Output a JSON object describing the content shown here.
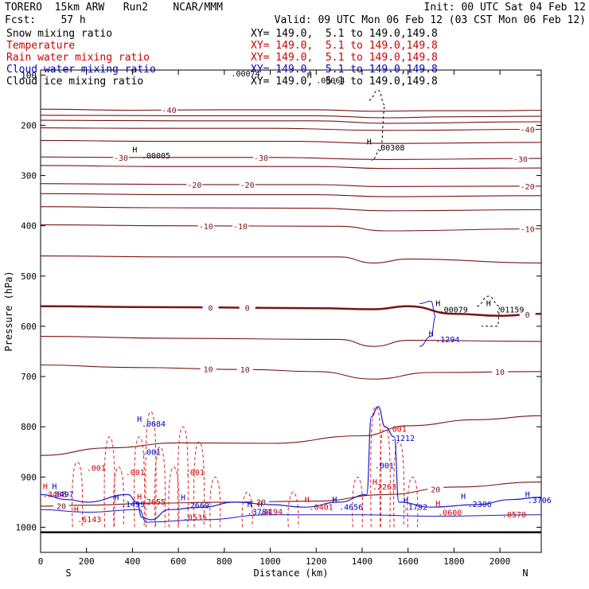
{
  "header": {
    "model": "TORERO  15km ARW   Run2    NCAR/MMM",
    "init": "Init: 00 UTC Sat 04 Feb 12",
    "fcst": "Fcst:    57 h",
    "valid": "Valid: 09 UTC Mon 06 Feb 12 (03 CST Mon 06 Feb 12)",
    "fields": [
      {
        "name": "Snow mixing ratio",
        "xy": "XY= 149.0,  5.1 to 149.0,149.8",
        "color": "#000000"
      },
      {
        "name": "Temperature",
        "xy": "XY= 149.0,  5.1 to 149.0,149.8",
        "color": "#cc0000"
      },
      {
        "name": "Rain water mixing ratio",
        "xy": "XY= 149.0,  5.1 to 149.0,149.8",
        "color": "#cc0000"
      },
      {
        "name": "Cloud water mixing ratio",
        "xy": "XY= 149.0,  5.1 to 149.0,149.8",
        "color": "#0000cc"
      },
      {
        "name": "Cloud ice mixing ratio",
        "xy": "XY= 149.0,  5.1 to 149.0,149.8",
        "color": "#000000"
      }
    ]
  },
  "colors": {
    "temperature": "#7a1414",
    "freezing": "#7a1414",
    "rain": "#dd2222",
    "cloud": "#1a1ad0",
    "ice": "#000000"
  },
  "chart_data": {
    "type": "line",
    "xlabel": "Distance (km)",
    "ylabel": "Pressure (hPa)",
    "xlim": [
      0,
      2180
    ],
    "ylim": [
      1050,
      90
    ],
    "xticks": [
      "0",
      "200",
      "400",
      "600",
      "800",
      "1000",
      "1200",
      "1400",
      "1600",
      "1800",
      "2000"
    ],
    "yticks": [
      "100",
      "200",
      "300",
      "400",
      "500",
      "600",
      "700",
      "800",
      "900",
      "1000"
    ],
    "end_labels": {
      "left": "S",
      "right": "N"
    },
    "isotherms": [
      {
        "label": "-40",
        "values": [
          [
            0,
            168
          ],
          [
            400,
            170
          ],
          [
            800,
            169
          ],
          [
            1200,
            169
          ],
          [
            1450,
            172
          ],
          [
            1700,
            171
          ],
          [
            2000,
            171
          ],
          [
            2180,
            170
          ]
        ],
        "labels_at": [
          [
            560,
            178
          ]
        ]
      },
      {
        "label": "-40",
        "values": [
          [
            0,
            180
          ],
          [
            600,
            181
          ],
          [
            1200,
            181
          ],
          [
            1500,
            185
          ],
          [
            1800,
            183
          ],
          [
            2180,
            182
          ]
        ]
      },
      {
        "label": "-40",
        "values": [
          [
            0,
            190
          ],
          [
            600,
            191
          ],
          [
            1200,
            191
          ],
          [
            1500,
            196
          ],
          [
            2180,
            193
          ]
        ]
      },
      {
        "label": "-40",
        "values": [
          [
            0,
            205
          ],
          [
            400,
            206
          ],
          [
            1000,
            206
          ],
          [
            1500,
            210
          ],
          [
            2180,
            208
          ]
        ],
        "labels_at": [
          [
            2120,
            206
          ]
        ]
      },
      {
        "label": "-40",
        "values": [
          [
            0,
            230
          ],
          [
            500,
            232
          ],
          [
            1100,
            232
          ],
          [
            1500,
            236
          ],
          [
            2180,
            234
          ]
        ]
      },
      {
        "label": "-30",
        "values": [
          [
            0,
            263
          ],
          [
            350,
            264
          ],
          [
            1000,
            264
          ],
          [
            1500,
            268
          ],
          [
            2180,
            266
          ]
        ],
        "labels_at": [
          [
            350,
            264
          ],
          [
            960,
            264
          ],
          [
            2090,
            266
          ]
        ]
      },
      {
        "label": "-30",
        "values": [
          [
            0,
            280
          ],
          [
            500,
            282
          ],
          [
            1200,
            282
          ],
          [
            1500,
            286
          ],
          [
            2180,
            285
          ]
        ]
      },
      {
        "label": "-20",
        "values": [
          [
            0,
            316
          ],
          [
            700,
            318
          ],
          [
            1200,
            318
          ],
          [
            1500,
            322
          ],
          [
            2180,
            321
          ]
        ],
        "labels_at": [
          [
            670,
            318
          ],
          [
            900,
            317
          ],
          [
            2120,
            321
          ]
        ]
      },
      {
        "label": "-20",
        "values": [
          [
            0,
            336
          ],
          [
            600,
            338
          ],
          [
            1200,
            338
          ],
          [
            1500,
            342
          ],
          [
            2180,
            340
          ]
        ]
      },
      {
        "label": "-10",
        "values": [
          [
            0,
            362
          ],
          [
            500,
            364
          ],
          [
            1200,
            365
          ],
          [
            1500,
            370
          ],
          [
            2180,
            368
          ]
        ]
      },
      {
        "label": "-10",
        "values": [
          [
            0,
            398
          ],
          [
            600,
            400
          ],
          [
            1300,
            401
          ],
          [
            1500,
            410
          ],
          [
            2180,
            406
          ]
        ],
        "labels_at": [
          [
            720,
            401
          ],
          [
            870,
            401
          ],
          [
            2120,
            406
          ]
        ]
      },
      {
        "label": "-10",
        "values": [
          [
            0,
            460
          ],
          [
            600,
            462
          ],
          [
            1300,
            462
          ],
          [
            1450,
            474
          ],
          [
            1600,
            466
          ],
          [
            2180,
            474
          ]
        ]
      },
      {
        "label": "0",
        "values": [
          [
            0,
            560
          ],
          [
            500,
            562
          ],
          [
            1200,
            564
          ],
          [
            1450,
            566
          ],
          [
            1600,
            560
          ],
          [
            1800,
            575
          ],
          [
            2000,
            579
          ],
          [
            2180,
            575
          ]
        ],
        "labels_at": [
          [
            740,
            565
          ],
          [
            900,
            566
          ],
          [
            2120,
            577
          ]
        ],
        "bold": true
      },
      {
        "label": "0",
        "values": [
          [
            0,
            620
          ],
          [
            600,
            624
          ],
          [
            1300,
            626
          ],
          [
            1450,
            640
          ],
          [
            1600,
            628
          ],
          [
            2180,
            630
          ]
        ]
      },
      {
        "label": "10",
        "values": [
          [
            0,
            677
          ],
          [
            400,
            682
          ],
          [
            900,
            686
          ],
          [
            1200,
            690
          ],
          [
            1450,
            705
          ],
          [
            1700,
            692
          ],
          [
            2180,
            690
          ]
        ],
        "labels_at": [
          [
            730,
            688
          ],
          [
            890,
            688
          ],
          [
            2000,
            688
          ]
        ]
      },
      {
        "label": "10",
        "values": [
          [
            0,
            857
          ],
          [
            300,
            842
          ],
          [
            600,
            832
          ],
          [
            1000,
            833
          ],
          [
            1400,
            818
          ],
          [
            1600,
            798
          ],
          [
            1900,
            786
          ],
          [
            2180,
            778
          ]
        ]
      },
      {
        "label": "20",
        "values": [
          [
            0,
            958
          ],
          [
            200,
            956
          ],
          [
            500,
            952
          ],
          [
            800,
            950
          ],
          [
            1200,
            948
          ],
          [
            1500,
            935
          ],
          [
            1800,
            920
          ],
          [
            2180,
            910
          ]
        ],
        "labels_at": [
          [
            90,
            956
          ],
          [
            960,
            950
          ],
          [
            1720,
            920
          ]
        ]
      }
    ],
    "labels": [
      {
        "text": "H",
        "x": 400,
        "y": 254,
        "color": "#000000"
      },
      {
        "text": ".00005",
        "x": 440,
        "y": 266,
        "color": "#000000"
      },
      {
        "text": ".00074",
        "x": 830,
        "y": 103,
        "color": "#000000"
      },
      {
        "text": "H",
        "x": 1160,
        "y": 106,
        "color": "#000000"
      },
      {
        "text": ".00064",
        "x": 1200,
        "y": 116,
        "color": "#000000"
      },
      {
        "text": "H",
        "x": 1420,
        "y": 238,
        "color": "#000000"
      },
      {
        "text": ".00308",
        "x": 1460,
        "y": 250,
        "color": "#000000"
      },
      {
        "text": "H",
        "x": 1720,
        "y": 560,
        "color": "#000000"
      },
      {
        "text": ".00079",
        "x": 1735,
        "y": 572,
        "color": "#000000"
      },
      {
        "text": "H",
        "x": 1940,
        "y": 560,
        "color": "#000000"
      },
      {
        "text": ".01159",
        "x": 1980,
        "y": 572,
        "color": "#000000"
      },
      {
        "text": "H",
        "x": 1690,
        "y": 620,
        "color": "#0000cc"
      },
      {
        "text": ".1294",
        "x": 1720,
        "y": 632,
        "color": "#0000cc"
      },
      {
        "text": "H",
        "x": 420,
        "y": 790,
        "color": "#0000cc"
      },
      {
        "text": ".0684",
        "x": 440,
        "y": 800,
        "color": "#0000cc"
      },
      {
        "text": ".001",
        "x": 440,
        "y": 856,
        "color": "#0000cc"
      },
      {
        "text": ".001",
        "x": 200,
        "y": 888,
        "color": "#cc0000"
      },
      {
        "text": ".001",
        "x": 370,
        "y": 896,
        "color": "#cc0000"
      },
      {
        "text": ".001",
        "x": 630,
        "y": 896,
        "color": "#cc0000"
      },
      {
        "text": ".001",
        "x": 1510,
        "y": 810,
        "color": "#cc0000"
      },
      {
        "text": ".1212",
        "x": 1525,
        "y": 828,
        "color": "#0000cc"
      },
      {
        "text": ".001",
        "x": 1455,
        "y": 883,
        "color": "#0000cc"
      },
      {
        "text": "H",
        "x": 1445,
        "y": 915,
        "color": "#cc0000"
      },
      {
        "text": ".2263",
        "x": 1445,
        "y": 925,
        "color": "#cc0000"
      },
      {
        "text": "H",
        "x": 10,
        "y": 924,
        "color": "#cc0000"
      },
      {
        "text": "H",
        "x": 50,
        "y": 924,
        "color": "#0000cc"
      },
      {
        "text": ".3488",
        "x": 10,
        "y": 940,
        "color": "#cc0000"
      },
      {
        "text": ".3497",
        "x": 40,
        "y": 940,
        "color": "#0000cc"
      },
      {
        "text": "H",
        "x": 145,
        "y": 970,
        "color": "#cc0000"
      },
      {
        "text": ".6143",
        "x": 160,
        "y": 990,
        "color": "#cc0000"
      },
      {
        "text": "H",
        "x": 320,
        "y": 946,
        "color": "#0000cc"
      },
      {
        "text": ".1499",
        "x": 350,
        "y": 960,
        "color": "#0000cc"
      },
      {
        "text": "H",
        "x": 420,
        "y": 945,
        "color": "#cc0000"
      },
      {
        "text": ".2655",
        "x": 440,
        "y": 955,
        "color": "#cc0000"
      },
      {
        "text": "H",
        "x": 610,
        "y": 946,
        "color": "#0000cc"
      },
      {
        "text": ".2669",
        "x": 630,
        "y": 962,
        "color": "#0000cc"
      },
      {
        "text": ".0535",
        "x": 620,
        "y": 986,
        "color": "#cc0000"
      },
      {
        "text": "H",
        "x": 900,
        "y": 960,
        "color": "#0000cc"
      },
      {
        "text": "H",
        "x": 945,
        "y": 960,
        "color": "#cc0000"
      },
      {
        "text": ".3784",
        "x": 900,
        "y": 975,
        "color": "#0000cc"
      },
      {
        "text": ".4194",
        "x": 950,
        "y": 975,
        "color": "#cc0000"
      },
      {
        "text": "H",
        "x": 1150,
        "y": 950,
        "color": "#cc0000"
      },
      {
        "text": ".0401",
        "x": 1170,
        "y": 965,
        "color": "#cc0000"
      },
      {
        "text": "H",
        "x": 1270,
        "y": 950,
        "color": "#0000cc"
      },
      {
        "text": ".4656",
        "x": 1300,
        "y": 965,
        "color": "#0000cc"
      },
      {
        "text": "H",
        "x": 1580,
        "y": 952,
        "color": "#0000cc"
      },
      {
        "text": ".1792",
        "x": 1580,
        "y": 965,
        "color": "#0000cc"
      },
      {
        "text": "H",
        "x": 1720,
        "y": 958,
        "color": "#cc0000"
      },
      {
        "text": ".0600",
        "x": 1730,
        "y": 976,
        "color": "#cc0000"
      },
      {
        "text": "H",
        "x": 1830,
        "y": 944,
        "color": "#0000cc"
      },
      {
        "text": ".2306",
        "x": 1860,
        "y": 960,
        "color": "#0000cc"
      },
      {
        "text": ".0570",
        "x": 2010,
        "y": 980,
        "color": "#cc0000"
      },
      {
        "text": "H",
        "x": 2110,
        "y": 940,
        "color": "#0000cc"
      },
      {
        "text": ".3706",
        "x": 2120,
        "y": 952,
        "color": "#0000cc"
      }
    ]
  }
}
